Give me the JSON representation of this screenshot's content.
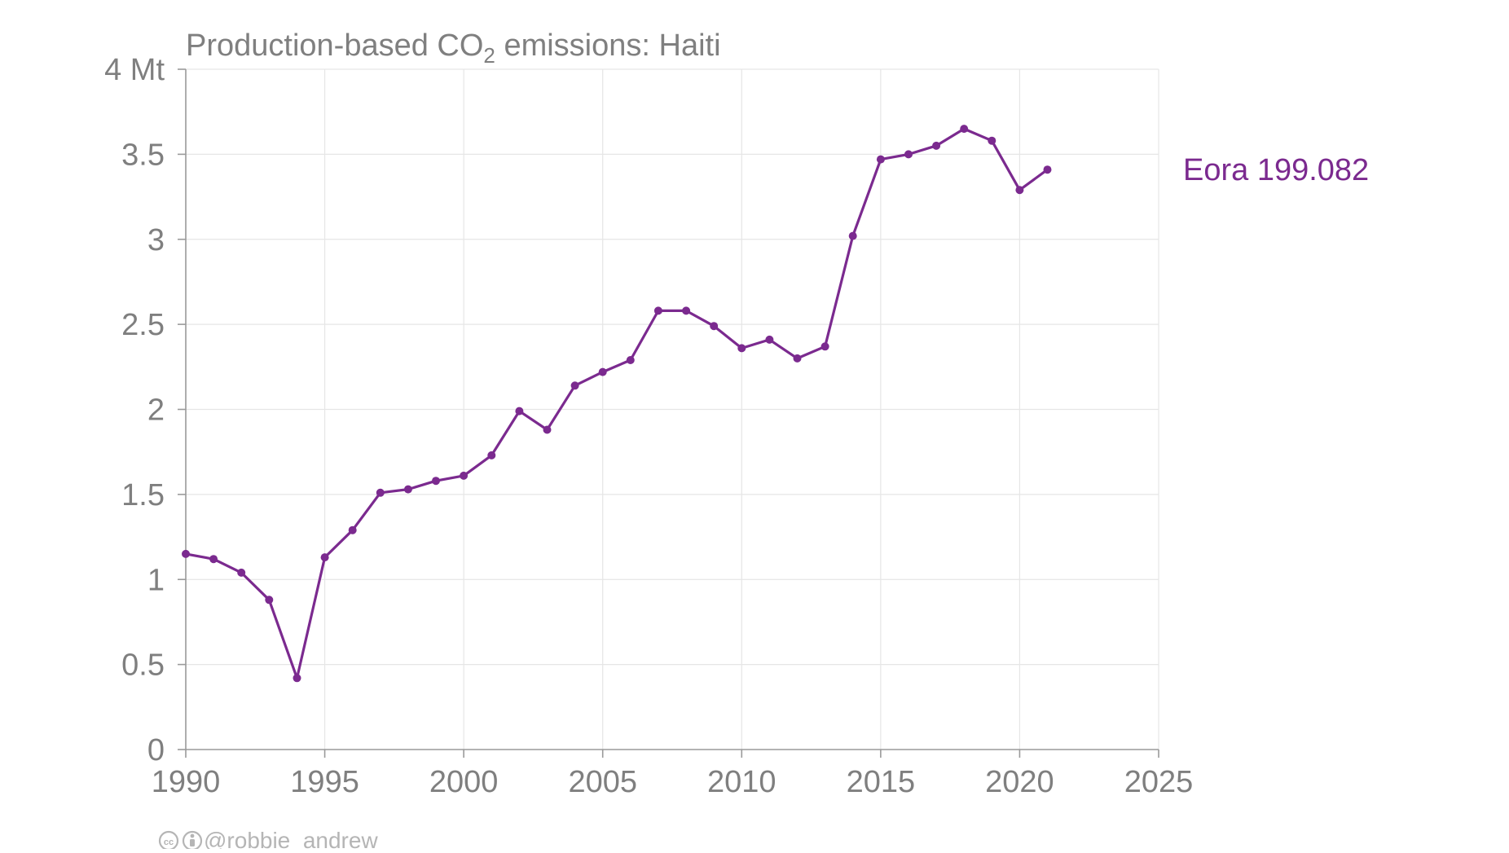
{
  "chart_data": {
    "type": "line",
    "title": "Production-based CO",
    "title_sub": "2",
    "title_suffix": " emissions: Haiti",
    "y_unit_label": "4 Mt",
    "xlim": [
      1990,
      2025
    ],
    "ylim": [
      0,
      4
    ],
    "x_ticks": [
      1990,
      1995,
      2000,
      2005,
      2010,
      2015,
      2020,
      2025
    ],
    "x_tick_labels": [
      "1990",
      "1995",
      "2000",
      "2005",
      "2010",
      "2015",
      "2020",
      "2025"
    ],
    "y_ticks": [
      0,
      0.5,
      1,
      1.5,
      2,
      2.5,
      3,
      3.5,
      4
    ],
    "y_tick_labels": [
      "0",
      "0.5",
      "1",
      "1.5",
      "2",
      "2.5",
      "3",
      "3.5",
      "4 Mt"
    ],
    "grid": true,
    "series": [
      {
        "name": "Eora 199.082",
        "color": "#7b2a8f",
        "x": [
          1990,
          1991,
          1992,
          1993,
          1994,
          1995,
          1996,
          1997,
          1998,
          1999,
          2000,
          2001,
          2002,
          2003,
          2004,
          2005,
          2006,
          2007,
          2008,
          2009,
          2010,
          2011,
          2012,
          2013,
          2014,
          2015,
          2016,
          2017,
          2018,
          2019,
          2020,
          2021
        ],
        "y": [
          1.15,
          1.12,
          1.04,
          0.88,
          0.42,
          1.13,
          1.29,
          1.51,
          1.53,
          1.58,
          1.61,
          1.73,
          1.99,
          1.88,
          2.14,
          2.22,
          2.29,
          2.58,
          2.58,
          2.49,
          2.36,
          2.41,
          2.3,
          2.37,
          3.02,
          3.47,
          3.5,
          3.55,
          3.65,
          3.58,
          3.29,
          3.41
        ]
      }
    ]
  },
  "credit": {
    "icons": [
      "creative-commons-icon",
      "attribution-icon"
    ],
    "text": "@robbie_andrew"
  },
  "colors": {
    "series": "#7b2a8f",
    "axis_text": "#7f7f7f",
    "grid": "#e6e6e6",
    "credit": "#b5b5b5"
  }
}
